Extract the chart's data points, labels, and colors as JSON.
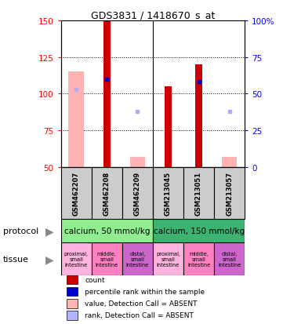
{
  "title": "GDS3831 / 1418670_s_at",
  "samples": [
    "GSM462207",
    "GSM462208",
    "GSM462209",
    "GSM213045",
    "GSM213051",
    "GSM213057"
  ],
  "ylim_left": [
    50,
    150
  ],
  "ylim_right": [
    0,
    100
  ],
  "yticks_left": [
    50,
    75,
    100,
    125,
    150
  ],
  "yticks_right": [
    0,
    25,
    50,
    75,
    100
  ],
  "ytick_labels_left": [
    "50",
    "75",
    "100",
    "125",
    "150"
  ],
  "ytick_labels_right": [
    "0",
    "25",
    "50",
    "75",
    "100%"
  ],
  "bars_red_bottom": [
    50,
    50,
    50,
    50,
    50,
    50
  ],
  "bars_red_height": [
    0,
    100,
    0,
    55,
    70,
    0
  ],
  "bars_pink_bottom": [
    50,
    50,
    50,
    50,
    50,
    50
  ],
  "bars_pink_height": [
    65,
    0,
    7,
    0,
    0,
    7
  ],
  "blue_squares_y": [
    null,
    110,
    null,
    null,
    108,
    null
  ],
  "light_blue_squares_y": [
    103,
    null,
    88,
    null,
    null,
    88
  ],
  "protocol_groups": [
    {
      "label": "calcium, 50 mmol/kg",
      "start": 0,
      "end": 3,
      "color": "#90ee90"
    },
    {
      "label": "calcium, 150 mmol/kg",
      "start": 3,
      "end": 6,
      "color": "#3cb371"
    }
  ],
  "tissue_colors": [
    "#ffb3de",
    "#ff80c0",
    "#cc66cc",
    "#ffb3de",
    "#ff80c0",
    "#cc66cc"
  ],
  "tissue_labels": [
    "proximal,\nsmall\nintestine",
    "middle,\nsmall\nintestine",
    "distal,\nsmall\nintestine",
    "proximal,\nsmall\nintestine",
    "middle,\nsmall\nintestine",
    "distal,\nsmall\nintestine"
  ],
  "legend_items": [
    {
      "color": "#cc0000",
      "label": "count"
    },
    {
      "color": "#0000cc",
      "label": "percentile rank within the sample"
    },
    {
      "color": "#ffb3b3",
      "label": "value, Detection Call = ABSENT"
    },
    {
      "color": "#b3b3ff",
      "label": "rank, Detection Call = ABSENT"
    }
  ],
  "protocol_arrow_label": "protocol",
  "tissue_arrow_label": "tissue"
}
